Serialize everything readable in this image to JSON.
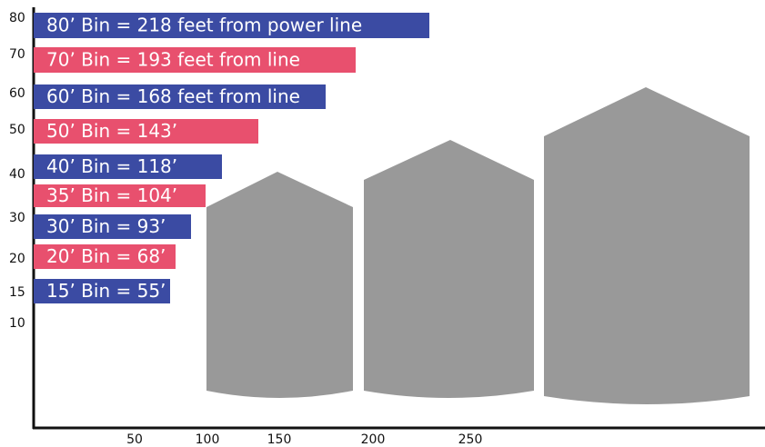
{
  "y_labels": [
    80,
    70,
    60,
    50,
    40,
    30,
    20,
    15,
    10
  ],
  "x_labels": [
    50,
    100,
    150,
    200,
    250
  ],
  "bars": [
    {
      "label": "80’ Bin = 218 feet from power line",
      "color": "#3b4ba3"
    },
    {
      "label": "70’ Bin = 193 feet from line",
      "color": "#e8506e"
    },
    {
      "label": "60’ Bin = 168 feet from line",
      "color": "#3b4ba3"
    },
    {
      "label": "50’ Bin = 143’",
      "color": "#e8506e"
    },
    {
      "label": "40’ Bin = 118’",
      "color": "#3b4ba3"
    },
    {
      "label": "35’ Bin = 104’",
      "color": "#e8506e"
    },
    {
      "label": "30’ Bin = 93’",
      "color": "#3b4ba3"
    },
    {
      "label": "20’ Bin = 68’",
      "color": "#e8506e"
    },
    {
      "label": "15’ Bin = 55’",
      "color": "#3b4ba3"
    }
  ]
}
